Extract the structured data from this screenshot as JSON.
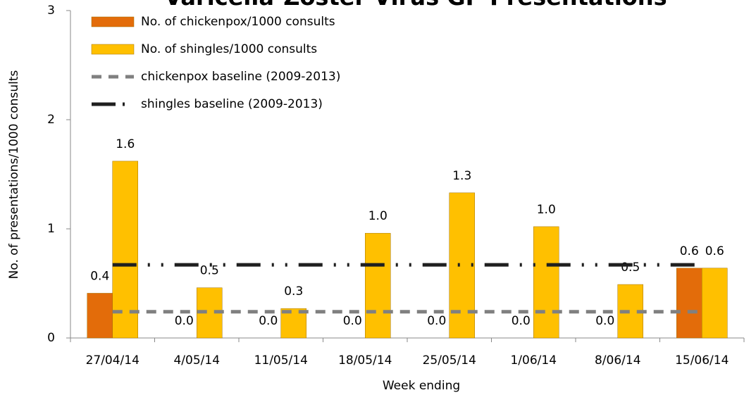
{
  "chart_data": {
    "type": "bar",
    "title": "Varicella-Zoster Virus GP Presentations",
    "x_label": "Week ending",
    "y_label": "No. of presentations/1000 consults",
    "categories": [
      "27/04/14",
      "4/05/14",
      "11/05/14",
      "18/05/14",
      "25/05/14",
      "1/06/14",
      "8/06/14",
      "15/06/14"
    ],
    "ylim": [
      0,
      3
    ],
    "yticks": [
      0,
      1,
      2,
      3
    ],
    "grid": false,
    "series": [
      {
        "name": "No. of chickenpox/1000 consults",
        "type": "bar",
        "color": "#e36c0a",
        "values": [
          0.41,
          0,
          0,
          0,
          0,
          0,
          0,
          0.64
        ],
        "value_labels": [
          "0.4",
          "0.0",
          "0.0",
          "0.0",
          "0.0",
          "0.0",
          "0.0",
          "0.6"
        ]
      },
      {
        "name": "No. of shingles/1000 consults",
        "type": "bar",
        "color": "#ffc000",
        "values": [
          1.62,
          0.46,
          0.27,
          0.96,
          1.33,
          1.02,
          0.49,
          0.64
        ],
        "value_labels": [
          "1.6",
          "0.5",
          "0.3",
          "1.0",
          "1.3",
          "1.0",
          "0.5",
          "0.6"
        ]
      },
      {
        "name": "chickenpox baseline (2009-2013)",
        "type": "line",
        "color": "#808080",
        "values": [
          0.24,
          0.24,
          0.24,
          0.24,
          0.24,
          0.24,
          0.24,
          0.24
        ]
      },
      {
        "name": "shingles baseline (2009-2013)",
        "type": "line",
        "color": "#1f1f1f",
        "values": [
          0.67,
          0.67,
          0.67,
          0.67,
          0.67,
          0.67,
          0.67,
          0.67
        ]
      }
    ]
  }
}
